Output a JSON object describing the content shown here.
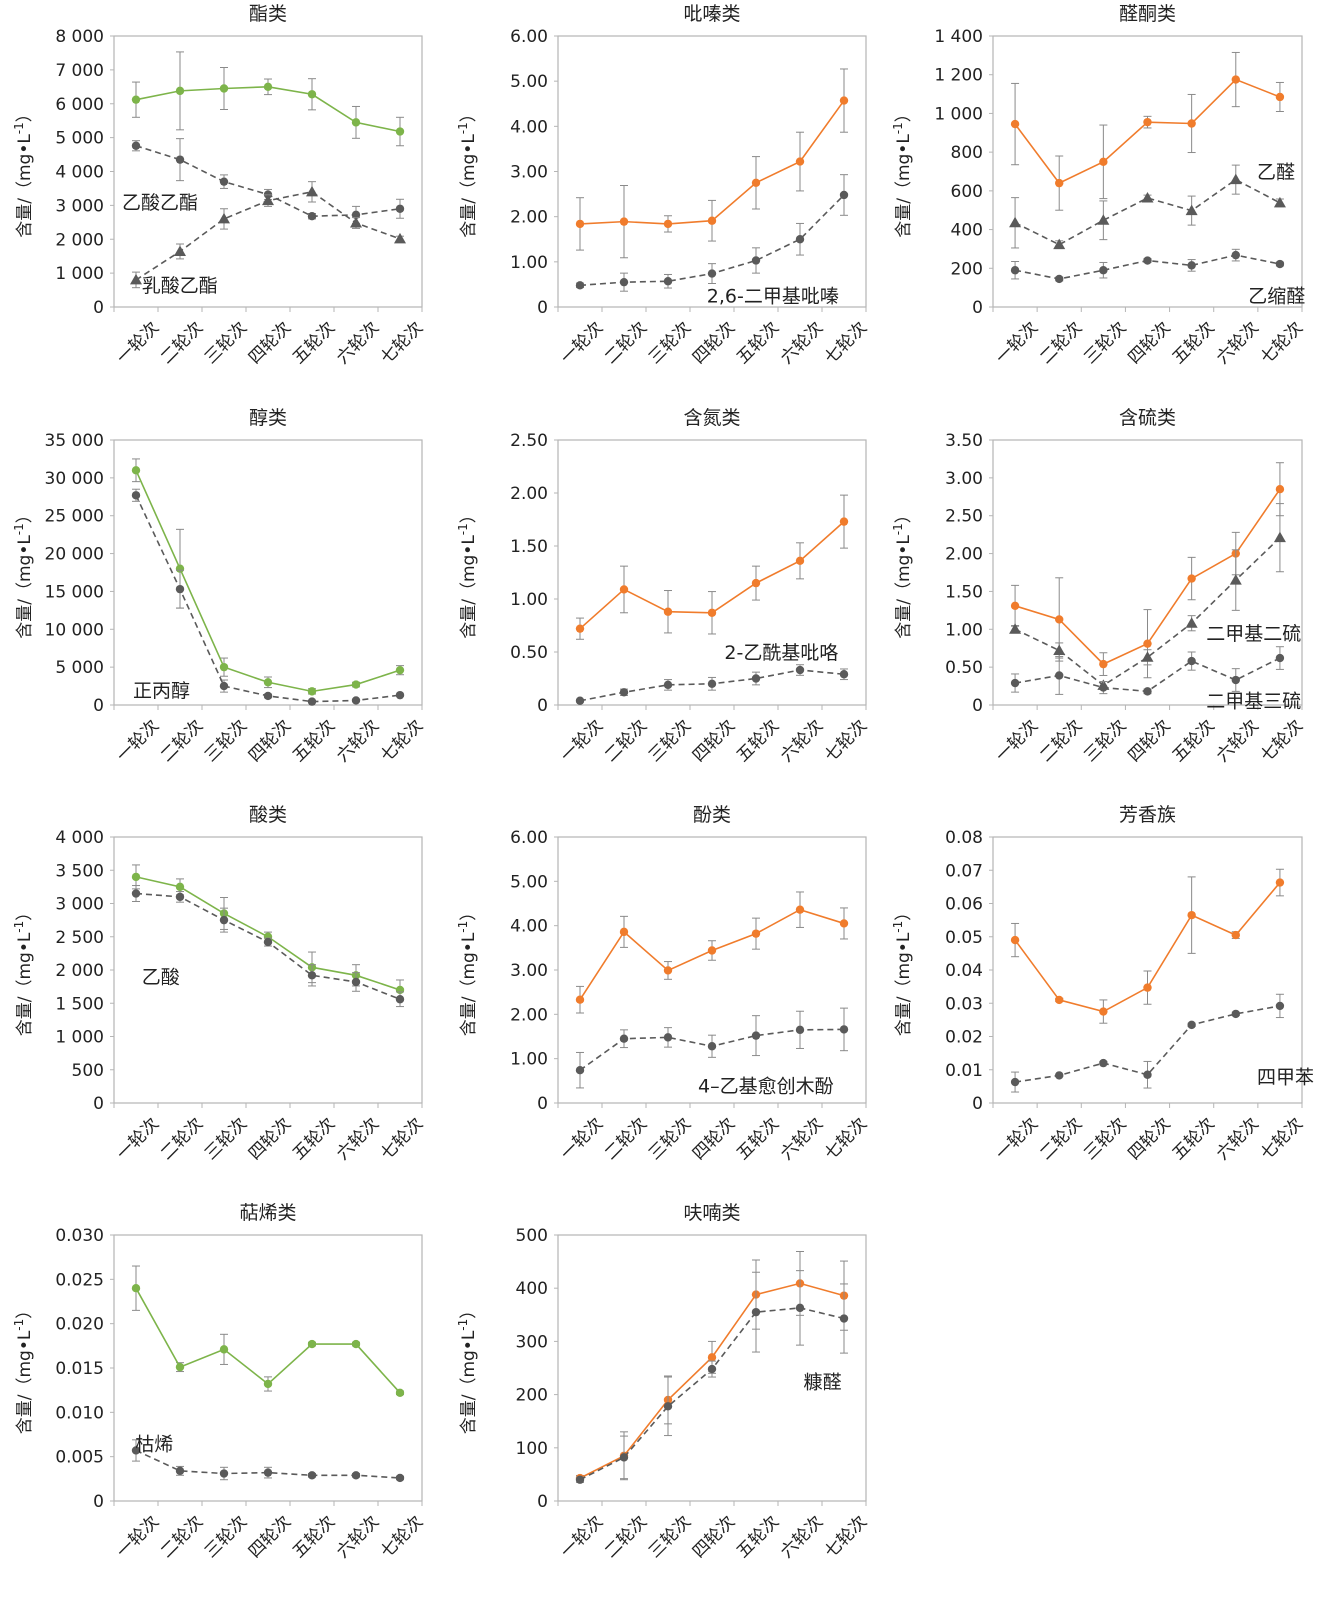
{
  "colors": {
    "green": "#7db44a",
    "orange": "#f07c2c",
    "gray": "#5a5a5a",
    "axis": "#b5b5b5",
    "text": "#222222"
  },
  "categories": [
    "一轮次",
    "二轮次",
    "三轮次",
    "四轮次",
    "五轮次",
    "六轮次",
    "七轮次"
  ],
  "ylabel": "含量/（mg•L-1）",
  "chart_data": [
    {
      "type": "line",
      "title": "酯类",
      "ylim": [
        0,
        8000
      ],
      "yticks": [
        "0",
        "1 000",
        "2 000",
        "3 000",
        "4 000",
        "5 000",
        "6 000",
        "7 000",
        "8 000"
      ],
      "series": [
        {
          "style": "green-solid",
          "marker": "circle",
          "values": [
            6120,
            6380,
            6450,
            6500,
            6280,
            5450,
            5180
          ],
          "errors": [
            520,
            1150,
            620,
            230,
            460,
            470,
            420
          ]
        },
        {
          "style": "gray-dashed",
          "marker": "circle",
          "values": [
            4760,
            4350,
            3700,
            3320,
            2680,
            2720,
            2900
          ],
          "errors": [
            150,
            620,
            200,
            150,
            80,
            250,
            280
          ]
        },
        {
          "style": "gray-dashed",
          "marker": "triangle",
          "values": [
            800,
            1640,
            2600,
            3140,
            3400,
            2480,
            2010
          ],
          "errors": [
            230,
            220,
            300,
            170,
            300,
            160,
            80
          ]
        }
      ],
      "annotations": [
        {
          "text": "乙酸乙酯",
          "x": 0,
          "y": 3100
        },
        {
          "text": "乳酸乙酯",
          "x": 0.45,
          "y": 650
        }
      ]
    },
    {
      "type": "line",
      "title": "吡嗪类",
      "ylim": [
        0,
        6
      ],
      "yticks": [
        "0",
        "1.00",
        "2.00",
        "3.00",
        "4.00",
        "5.00",
        "6.00"
      ],
      "series": [
        {
          "style": "orange-solid",
          "marker": "circle",
          "values": [
            1.84,
            1.89,
            1.84,
            1.91,
            2.75,
            3.22,
            4.57
          ],
          "errors": [
            0.58,
            0.8,
            0.18,
            0.45,
            0.58,
            0.65,
            0.7
          ]
        },
        {
          "style": "gray-dashed",
          "marker": "circle",
          "values": [
            0.48,
            0.55,
            0.57,
            0.74,
            1.03,
            1.5,
            2.48
          ],
          "errors": [
            0.05,
            0.2,
            0.15,
            0.22,
            0.28,
            0.35,
            0.45
          ]
        }
      ],
      "annotations": [
        {
          "text": "2,6-二甲基吡嗪",
          "x": 3.2,
          "y": 0.25
        }
      ]
    },
    {
      "type": "line",
      "title": "醛酮类",
      "ylim": [
        0,
        1400
      ],
      "yticks": [
        "0",
        "200",
        "400",
        "600",
        "800",
        "1 000",
        "1 200",
        "1 400"
      ],
      "series": [
        {
          "style": "orange-solid",
          "marker": "circle",
          "values": [
            945,
            640,
            750,
            955,
            948,
            1175,
            1085
          ],
          "errors": [
            210,
            140,
            190,
            30,
            150,
            140,
            75
          ]
        },
        {
          "style": "gray-dashed",
          "marker": "triangle",
          "values": [
            435,
            322,
            448,
            563,
            498,
            658,
            538
          ],
          "errors": [
            130,
            20,
            100,
            15,
            75,
            75,
            20
          ]
        },
        {
          "style": "gray-dashed",
          "marker": "circle",
          "values": [
            190,
            145,
            190,
            240,
            215,
            268,
            222
          ],
          "errors": [
            45,
            10,
            40,
            10,
            30,
            30,
            10
          ]
        }
      ],
      "annotations": [
        {
          "text": "乙醛",
          "x": 5.8,
          "y": 700
        },
        {
          "text": "乙缩醛",
          "x": 5.6,
          "y": 60
        }
      ]
    },
    {
      "type": "line",
      "title": "醇类",
      "ylim": [
        0,
        35000
      ],
      "yticks": [
        "0",
        "5 000",
        "10 000",
        "15 000",
        "20 000",
        "25 000",
        "30 000",
        "35 000"
      ],
      "series": [
        {
          "style": "green-solid",
          "marker": "circle",
          "values": [
            31000,
            18000,
            5000,
            3000,
            1800,
            2700,
            4600
          ],
          "errors": [
            1500,
            5200,
            1200,
            700,
            350,
            300,
            600
          ]
        },
        {
          "style": "gray-dashed",
          "marker": "circle",
          "values": [
            27700,
            15300,
            2500,
            1200,
            450,
            600,
            1300
          ],
          "errors": [
            800,
            2500,
            800,
            250,
            150,
            150,
            150
          ]
        }
      ],
      "annotations": [
        {
          "text": "正丙醇",
          "x": 0.25,
          "y": 2000
        }
      ]
    },
    {
      "type": "line",
      "title": "含氮类",
      "ylim": [
        0,
        2.5
      ],
      "yticks": [
        "0",
        "0.50",
        "1.00",
        "1.50",
        "2.00",
        "2.50"
      ],
      "series": [
        {
          "style": "orange-solid",
          "marker": "circle",
          "values": [
            0.72,
            1.09,
            0.88,
            0.87,
            1.15,
            1.36,
            1.73
          ],
          "errors": [
            0.1,
            0.22,
            0.2,
            0.2,
            0.16,
            0.17,
            0.25
          ]
        },
        {
          "style": "gray-dashed",
          "marker": "circle",
          "values": [
            0.04,
            0.12,
            0.19,
            0.2,
            0.25,
            0.33,
            0.29
          ],
          "errors": [
            0.01,
            0.03,
            0.05,
            0.06,
            0.06,
            0.05,
            0.05
          ]
        }
      ],
      "annotations": [
        {
          "text": "2-乙酰基吡咯",
          "x": 3.6,
          "y": 0.5
        }
      ]
    },
    {
      "type": "line",
      "title": "含硫类",
      "ylim": [
        0,
        3.5
      ],
      "yticks": [
        "0",
        "0.50",
        "1.00",
        "1.50",
        "2.00",
        "2.50",
        "3.00",
        "3.50"
      ],
      "series": [
        {
          "style": "orange-solid",
          "marker": "circle",
          "values": [
            1.31,
            1.13,
            0.54,
            0.81,
            1.67,
            2.0,
            2.85
          ],
          "errors": [
            0.27,
            0.55,
            0.15,
            0.45,
            0.28,
            0.28,
            0.35
          ]
        },
        {
          "style": "gray-dashed",
          "marker": "triangle",
          "values": [
            1.0,
            0.72,
            0.26,
            0.63,
            1.08,
            1.65,
            2.21
          ],
          "errors": [
            0.05,
            0.1,
            0.05,
            0.1,
            0.1,
            0.4,
            0.45
          ]
        },
        {
          "style": "gray-dashed",
          "marker": "circle",
          "values": [
            0.29,
            0.39,
            0.23,
            0.18,
            0.58,
            0.33,
            0.62
          ],
          "errors": [
            0.12,
            0.25,
            0.08,
            0.03,
            0.12,
            0.15,
            0.15
          ]
        }
      ],
      "annotations": [
        {
          "text": "二甲基二硫",
          "x": 4.65,
          "y": 0.95
        },
        {
          "text": "二甲基三硫",
          "x": 4.65,
          "y": 0.06
        }
      ]
    },
    {
      "type": "line",
      "title": "酸类",
      "ylim": [
        0,
        4000
      ],
      "yticks": [
        "0",
        "500",
        "1 000",
        "1 500",
        "2 000",
        "2 500",
        "3 000",
        "3 500",
        "4 000"
      ],
      "series": [
        {
          "style": "green-solid",
          "marker": "circle",
          "values": [
            3400,
            3250,
            2850,
            2500,
            2040,
            1920,
            1700
          ],
          "errors": [
            180,
            120,
            240,
            70,
            230,
            160,
            150
          ]
        },
        {
          "style": "gray-dashed",
          "marker": "circle",
          "values": [
            3150,
            3100,
            2750,
            2420,
            1920,
            1820,
            1560
          ],
          "errors": [
            120,
            80,
            180,
            60,
            160,
            140,
            110
          ]
        }
      ],
      "annotations": [
        {
          "text": "乙酸",
          "x": 0.45,
          "y": 1900
        }
      ]
    },
    {
      "type": "line",
      "title": "酚类",
      "ylim": [
        0,
        6
      ],
      "yticks": [
        "0",
        "1.00",
        "2.00",
        "3.00",
        "4.00",
        "5.00",
        "6.00"
      ],
      "series": [
        {
          "style": "orange-solid",
          "marker": "circle",
          "values": [
            2.33,
            3.86,
            2.99,
            3.44,
            3.82,
            4.36,
            4.05
          ],
          "errors": [
            0.3,
            0.35,
            0.2,
            0.22,
            0.35,
            0.4,
            0.35
          ]
        },
        {
          "style": "gray-dashed",
          "marker": "circle",
          "values": [
            0.74,
            1.45,
            1.48,
            1.28,
            1.52,
            1.65,
            1.66
          ],
          "errors": [
            0.4,
            0.2,
            0.22,
            0.25,
            0.45,
            0.42,
            0.48
          ]
        }
      ],
      "annotations": [
        {
          "text": "4–乙基愈创木酚",
          "x": 3.0,
          "y": 0.4
        }
      ]
    },
    {
      "type": "line",
      "title": "芳香族",
      "ylim": [
        0,
        0.08
      ],
      "yticks": [
        "0",
        "0.01",
        "0.02",
        "0.03",
        "0.04",
        "0.05",
        "0.06",
        "0.07",
        "0.08"
      ],
      "series": [
        {
          "style": "orange-solid",
          "marker": "circle",
          "values": [
            0.049,
            0.031,
            0.0275,
            0.0347,
            0.0565,
            0.0505,
            0.0663
          ],
          "errors": [
            0.005,
            0.0005,
            0.0035,
            0.005,
            0.0115,
            0.001,
            0.004
          ]
        },
        {
          "style": "gray-dashed",
          "marker": "circle",
          "values": [
            0.0063,
            0.0083,
            0.012,
            0.0085,
            0.0235,
            0.0268,
            0.0292
          ],
          "errors": [
            0.003,
            0.0003,
            0.0005,
            0.004,
            0.0005,
            0.0005,
            0.0035
          ]
        }
      ],
      "annotations": [
        {
          "text": "四甲苯",
          "x": 5.8,
          "y": 0.008
        }
      ]
    },
    {
      "type": "line",
      "title": "萜烯类",
      "ylim": [
        0,
        0.03
      ],
      "yticks": [
        "0",
        "0.005",
        "0.010",
        "0.015",
        "0.020",
        "0.025",
        "0.030"
      ],
      "series": [
        {
          "style": "green-solid",
          "marker": "circle",
          "values": [
            0.024,
            0.0151,
            0.0171,
            0.0132,
            0.0177,
            0.0177,
            0.0122
          ],
          "errors": [
            0.0025,
            0.0005,
            0.0017,
            0.0008,
            0.0002,
            0.0002,
            0.0002
          ]
        },
        {
          "style": "gray-dashed",
          "marker": "circle",
          "values": [
            0.0057,
            0.0034,
            0.0031,
            0.0032,
            0.0029,
            0.0029,
            0.0026
          ],
          "errors": [
            0.0012,
            0.0005,
            0.0007,
            0.0006,
            0.0002,
            0.0002,
            0.0002
          ]
        }
      ],
      "annotations": [
        {
          "text": "枯烯",
          "x": 0.3,
          "y": 0.0065
        }
      ]
    },
    {
      "type": "line",
      "title": "呋喃类",
      "ylim": [
        0,
        500
      ],
      "yticks": [
        "0",
        "100",
        "200",
        "300",
        "400",
        "500"
      ],
      "series": [
        {
          "style": "orange-solid",
          "marker": "circle",
          "values": [
            43,
            85,
            190,
            270,
            388,
            409,
            386
          ],
          "errors": [
            5,
            45,
            45,
            30,
            65,
            60,
            65
          ]
        },
        {
          "style": "gray-dashed",
          "marker": "circle",
          "values": [
            40,
            82,
            178,
            248,
            355,
            363,
            343
          ],
          "errors": [
            5,
            40,
            55,
            15,
            75,
            70,
            65
          ]
        }
      ],
      "annotations": [
        {
          "text": "糠醛",
          "x": 5.4,
          "y": 225
        }
      ]
    }
  ]
}
